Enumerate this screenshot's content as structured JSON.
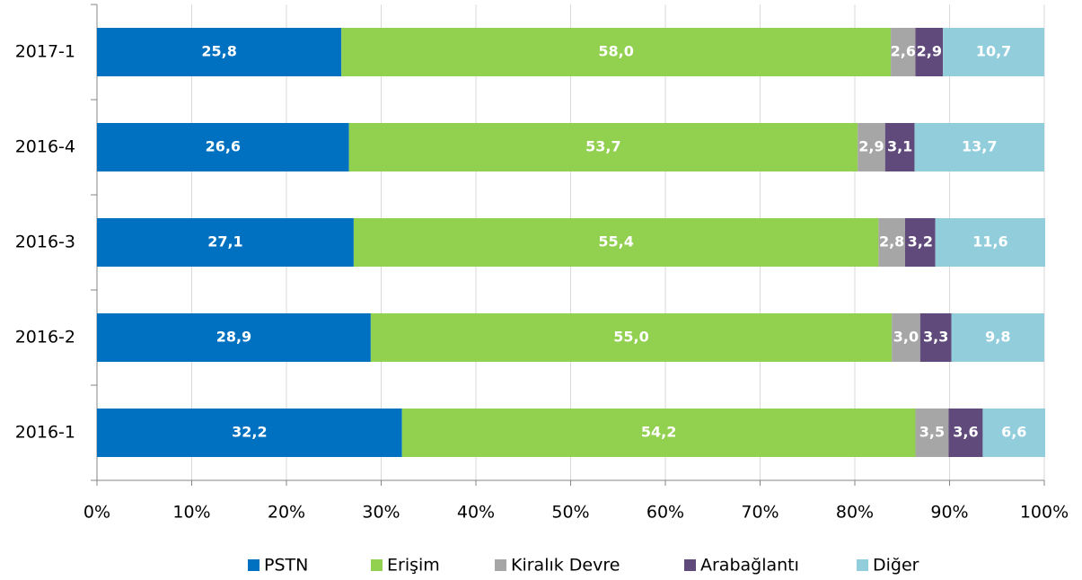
{
  "chart_data": {
    "type": "stacked_barh",
    "categories": [
      "2017-1",
      "2016-4",
      "2016-3",
      "2016-2",
      "2016-1"
    ],
    "series": [
      {
        "name": "PSTN",
        "color": "#0070c0",
        "values": [
          25.8,
          26.6,
          27.1,
          28.9,
          32.2
        ],
        "value_labels": [
          "25,8",
          "26,6",
          "27,1",
          "28,9",
          "32,2"
        ]
      },
      {
        "name": "Erişim",
        "color": "#92d050",
        "values": [
          58.0,
          53.7,
          55.4,
          55.0,
          54.2
        ],
        "value_labels": [
          "58,0",
          "53,7",
          "55,4",
          "55,0",
          "54,2"
        ]
      },
      {
        "name": "Kiralık Devre",
        "color": "#a6a6a6",
        "values": [
          2.6,
          2.9,
          2.8,
          3.0,
          3.5
        ],
        "value_labels": [
          "2,6",
          "2,9",
          "2,8",
          "3,0",
          "3,5"
        ]
      },
      {
        "name": "Arabağlantı",
        "color": "#604a7b",
        "values": [
          2.9,
          3.1,
          3.2,
          3.3,
          3.6
        ],
        "value_labels": [
          "2,9",
          "3,1",
          "3,2",
          "3,3",
          "3,6"
        ]
      },
      {
        "name": "Diğer",
        "color": "#92cddc",
        "values": [
          10.7,
          13.7,
          11.6,
          9.8,
          6.6
        ],
        "value_labels": [
          "10,7",
          "13,7",
          "11,6",
          "9,8",
          "6,6"
        ]
      }
    ],
    "xlim": [
      0,
      100
    ],
    "xticks": [
      {
        "value": 0,
        "label": "0%"
      },
      {
        "value": 10,
        "label": "10%"
      },
      {
        "value": 20,
        "label": "20%"
      },
      {
        "value": 30,
        "label": "30%"
      },
      {
        "value": 40,
        "label": "40%"
      },
      {
        "value": 50,
        "label": "50%"
      },
      {
        "value": 60,
        "label": "60%"
      },
      {
        "value": 70,
        "label": "70%"
      },
      {
        "value": 80,
        "label": "80%"
      },
      {
        "value": 90,
        "label": "90%"
      },
      {
        "value": 100,
        "label": "100%"
      }
    ],
    "grid": true,
    "legend": "bottom"
  }
}
